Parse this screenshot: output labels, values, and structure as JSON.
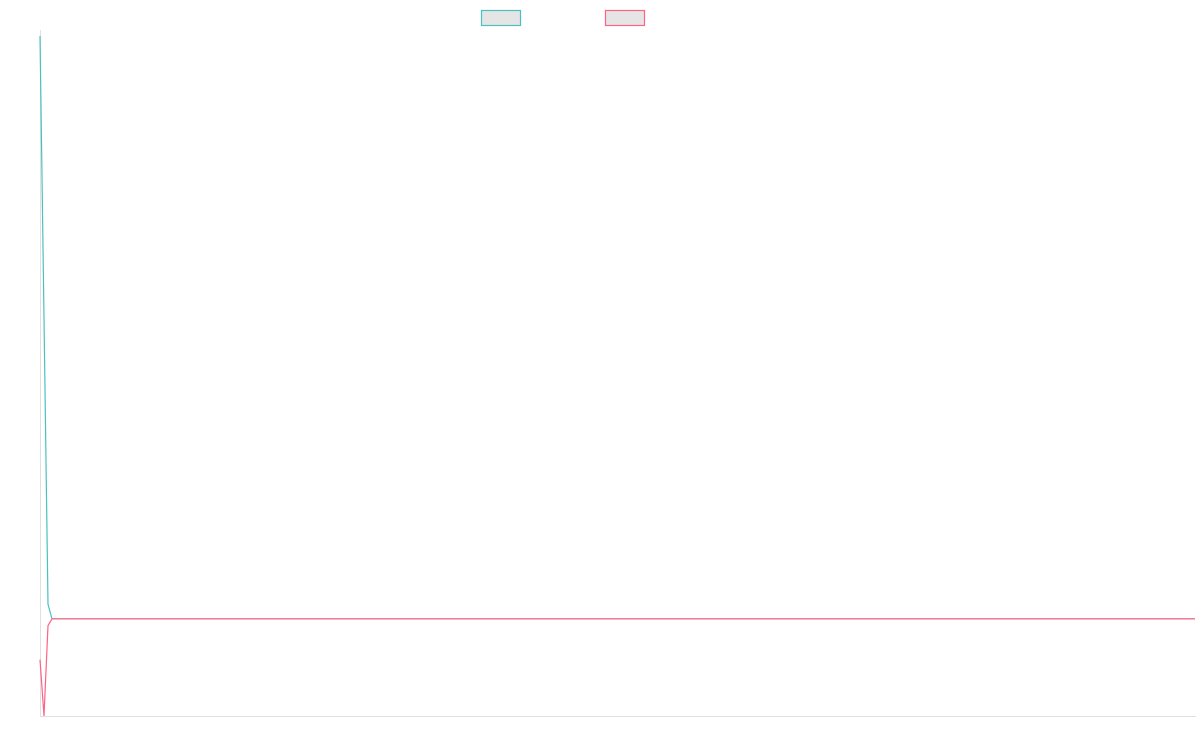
{
  "chart_data": {
    "type": "line",
    "title": "",
    "xlabel": "",
    "ylabel": "",
    "xlim": [
      0,
      288
    ],
    "ylim": [
      -1,
      6
    ],
    "grid": false,
    "legend": "top",
    "series": [
      {
        "color": "#4bc0c0",
        "points": [
          [
            0,
            6
          ],
          [
            1,
            3.1
          ],
          [
            2,
            0.15
          ],
          [
            3,
            0
          ],
          [
            288,
            0
          ]
        ]
      },
      {
        "color": "#ff6384",
        "points": [
          [
            0,
            -0.42
          ],
          [
            1,
            -1
          ],
          [
            2,
            -0.07
          ],
          [
            3,
            0
          ],
          [
            288,
            0
          ]
        ]
      }
    ]
  }
}
